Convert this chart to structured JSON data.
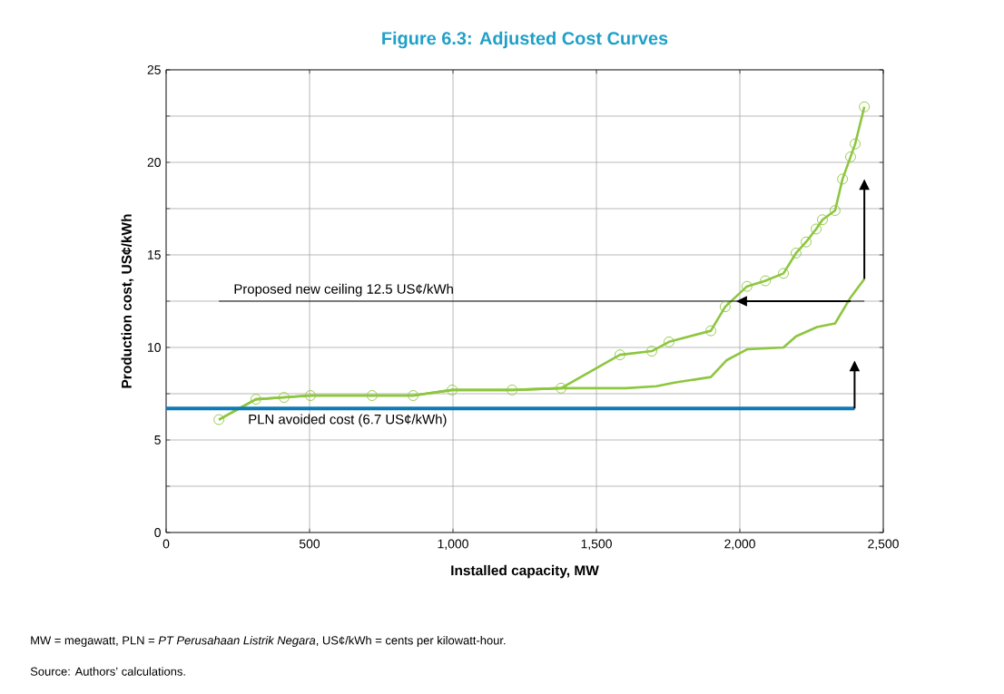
{
  "chart_data": {
    "type": "line",
    "title": "Figure 6.3: Adjusted Cost Curves",
    "xlabel": "Installed capacity, MW",
    "ylabel": "Production cost, US¢/kWh",
    "xlim": [
      0,
      2500
    ],
    "ylim": [
      0,
      25
    ],
    "xticks": [
      0,
      500,
      {
        "value": 1000,
        "label": "1,000"
      },
      {
        "value": 1500,
        "label": "1,500"
      },
      {
        "value": 2000,
        "label": "2,000"
      },
      {
        "value": 2500,
        "label": "2,500"
      }
    ],
    "yticks": [
      0,
      {
        "value": 2.5,
        "label": null
      },
      5,
      {
        "value": 7.5,
        "label": null
      },
      10,
      {
        "value": 12.5,
        "label": null
      },
      15,
      {
        "value": 17.5,
        "label": null
      },
      20,
      {
        "value": 22.5,
        "label": null
      },
      25
    ],
    "grid": true,
    "series": [
      {
        "color": "#8dc63f",
        "marker": "circle",
        "x": [
          184,
          313,
          411,
          503,
          718,
          861,
          997,
          1206,
          1377,
          1582,
          1693,
          1753,
          1899,
          1949,
          2025,
          2089,
          2152,
          2196,
          2231,
          2266,
          2288,
          2332,
          2358,
          2386,
          2402,
          2434
        ],
        "values": [
          6.1,
          7.2,
          7.3,
          7.4,
          7.4,
          7.4,
          7.7,
          7.7,
          7.8,
          9.6,
          9.8,
          10.3,
          10.9,
          12.2,
          13.3,
          13.6,
          14.0,
          15.1,
          15.7,
          16.4,
          16.9,
          17.4,
          19.1,
          20.3,
          21.0,
          23.0
        ]
      },
      {
        "color": "#8dc63f",
        "x": [
          184,
          313,
          411,
          503,
          718,
          861,
          997,
          1206,
          1377,
          1604,
          1709,
          1772,
          1899,
          1953,
          2025,
          2152,
          2196,
          2269,
          2332,
          2386,
          2434
        ],
        "values": [
          6.1,
          7.2,
          7.3,
          7.4,
          7.4,
          7.4,
          7.7,
          7.7,
          7.8,
          7.8,
          7.9,
          8.1,
          8.4,
          9.3,
          9.9,
          10.0,
          10.6,
          11.1,
          11.3,
          12.7,
          13.7
        ]
      },
      {
        "name": "PLN avoided cost (6.7 US¢/kWh)",
        "color": "#0e7bb5",
        "x": [
          0,
          2400
        ],
        "values": [
          6.7,
          6.7
        ]
      },
      {
        "name": "Proposed new ceiling 12.5 US¢/kWh",
        "color": "#000000",
        "x": [
          184,
          2434
        ],
        "values": [
          12.5,
          12.5
        ]
      }
    ],
    "annotations": [
      "MW = megawatt, PLN = *PT Perusahaan Listrik Negara*, US¢/kWh = cents per kilowatt-hour.",
      "Source: Authors’ calculations."
    ]
  }
}
